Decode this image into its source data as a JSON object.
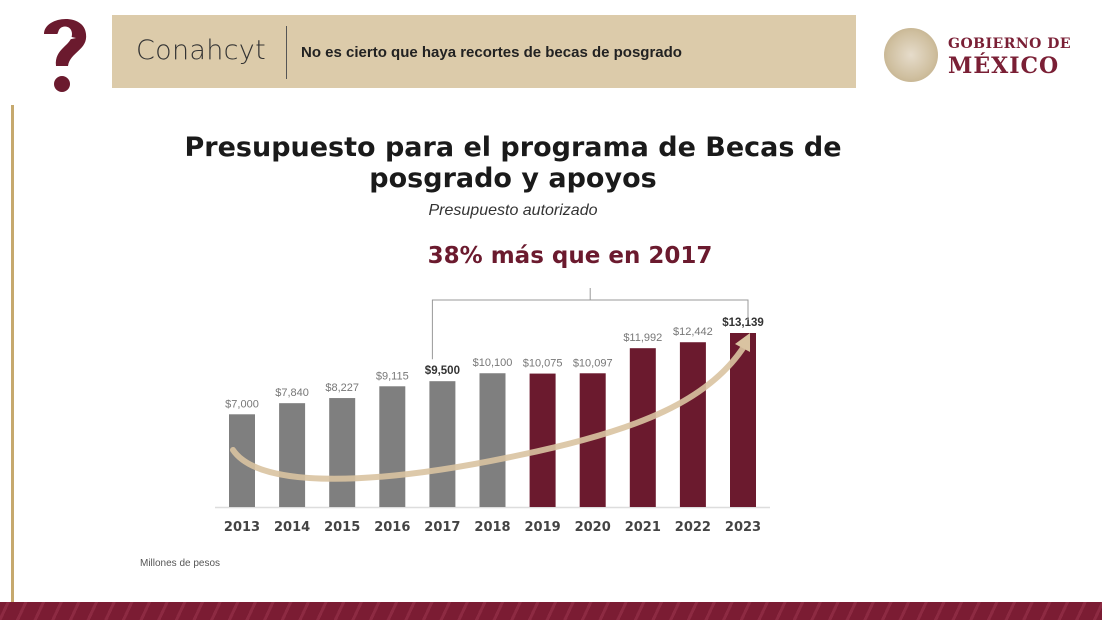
{
  "header": {
    "brand": "Conahcyt",
    "headline": "No es cierto que haya recortes de becas de posgrado",
    "gov_logo_line1": "GOBIERNO DE",
    "gov_logo_line2": "MÉXICO"
  },
  "colors": {
    "maroon": "#6b1a2e",
    "gray": "#7f7f7f",
    "banner": "#dccbaa",
    "gold": "#c6a96e"
  },
  "chart_data": {
    "type": "bar",
    "title": "Presupuesto para el programa de Becas de posgrado y apoyos",
    "subtitle": "Presupuesto autorizado",
    "annotation": "38% más que en 2017",
    "ylabel": "Millones de pesos",
    "xlabel": "",
    "ylim": [
      0,
      14000
    ],
    "grid": false,
    "categories": [
      "2013",
      "2014",
      "2015",
      "2016",
      "2017",
      "2018",
      "2019",
      "2020",
      "2021",
      "2022",
      "2023"
    ],
    "values": [
      7000,
      7840,
      8227,
      9115,
      9500,
      10100,
      10075,
      10097,
      11992,
      12442,
      13139
    ],
    "labels": [
      "$7,000",
      "$7,840",
      "$8,227",
      "$9,115",
      "$9,500",
      "$10,100",
      "$10,075",
      "$10,097",
      "$11,992",
      "$12,442",
      "$13,139"
    ],
    "bold_labels": [
      "2017",
      "2023"
    ],
    "series_colors": [
      "gray",
      "gray",
      "gray",
      "gray",
      "gray",
      "gray",
      "maroon",
      "maroon",
      "maroon",
      "maroon",
      "maroon"
    ]
  }
}
